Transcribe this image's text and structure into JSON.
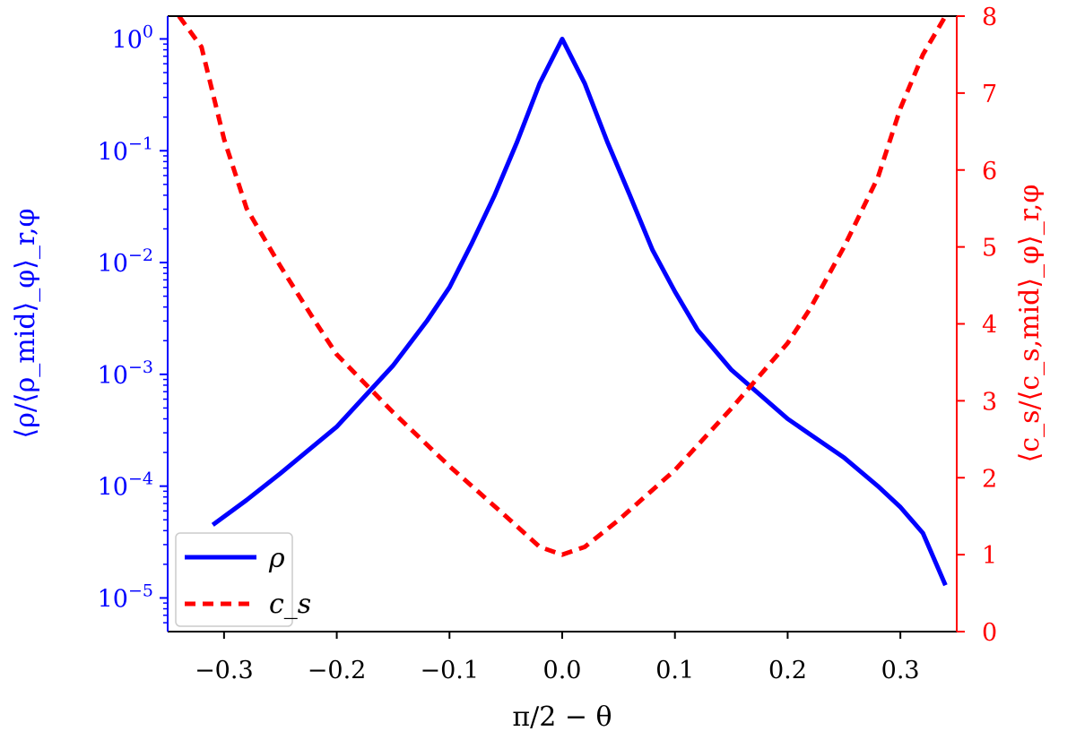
{
  "chart_data": {
    "type": "line",
    "xlabel": "π/2 − θ",
    "ylabel_left": "⟨ρ/⟨ρ_mid⟩_φ⟩_r,φ",
    "ylabel_right": "⟨c_s/⟨c_s,mid⟩_φ⟩_r,φ",
    "xlim": [
      -0.35,
      0.35
    ],
    "ylim_left": [
      5e-06,
      1.6
    ],
    "yscale_left": "log",
    "ylim_right": [
      0,
      8
    ],
    "yscale_right": "linear",
    "x_ticks": [
      "−0.3",
      "−0.2",
      "−0.1",
      "0.0",
      "0.1",
      "0.2",
      "0.3"
    ],
    "x_tick_values": [
      -0.3,
      -0.2,
      -0.1,
      0.0,
      0.1,
      0.2,
      0.3
    ],
    "y_left_ticks": [
      {
        "base": "10",
        "exp": "0",
        "value": 1
      },
      {
        "base": "10",
        "exp": "−1",
        "value": 0.1
      },
      {
        "base": "10",
        "exp": "−2",
        "value": 0.01
      },
      {
        "base": "10",
        "exp": "−3",
        "value": 0.001
      },
      {
        "base": "10",
        "exp": "−4",
        "value": 0.0001
      },
      {
        "base": "10",
        "exp": "−5",
        "value": 1e-05
      }
    ],
    "y_right_ticks": [
      "0",
      "1",
      "2",
      "3",
      "4",
      "5",
      "6",
      "7",
      "8"
    ],
    "y_right_tick_values": [
      0,
      1,
      2,
      3,
      4,
      5,
      6,
      7,
      8
    ],
    "grid": false,
    "legend": {
      "position": "bottom-left",
      "entries": [
        "ρ",
        "c_s"
      ]
    },
    "series": [
      {
        "name": "ρ",
        "axis": "left",
        "color": "#0000ff",
        "style": "solid",
        "x": [
          -0.31,
          -0.28,
          -0.25,
          -0.2,
          -0.15,
          -0.12,
          -0.1,
          -0.08,
          -0.06,
          -0.04,
          -0.02,
          0.0,
          0.02,
          0.04,
          0.06,
          0.08,
          0.1,
          0.12,
          0.15,
          0.2,
          0.22,
          0.25,
          0.28,
          0.3,
          0.32,
          0.34
        ],
        "y": [
          4.5e-05,
          7.5e-05,
          0.00013,
          0.00034,
          0.0012,
          0.003,
          0.006,
          0.015,
          0.04,
          0.12,
          0.4,
          1.0,
          0.4,
          0.12,
          0.04,
          0.013,
          0.0055,
          0.0025,
          0.0011,
          0.0004,
          0.00029,
          0.00018,
          0.0001,
          6.5e-05,
          3.8e-05,
          1.3e-05
        ]
      },
      {
        "name": "c_s",
        "axis": "right",
        "color": "#ff0000",
        "style": "dashed",
        "x": [
          -0.34,
          -0.32,
          -0.3,
          -0.28,
          -0.25,
          -0.22,
          -0.2,
          -0.15,
          -0.1,
          -0.05,
          -0.02,
          0.0,
          0.02,
          0.05,
          0.1,
          0.15,
          0.2,
          0.22,
          0.25,
          0.28,
          0.3,
          0.32,
          0.34
        ],
        "y": [
          8.0,
          7.6,
          6.4,
          5.5,
          4.75,
          4.05,
          3.6,
          2.85,
          2.15,
          1.5,
          1.1,
          1.0,
          1.1,
          1.45,
          2.1,
          2.9,
          3.75,
          4.2,
          5.0,
          5.9,
          6.8,
          7.5,
          8.0
        ]
      }
    ]
  }
}
